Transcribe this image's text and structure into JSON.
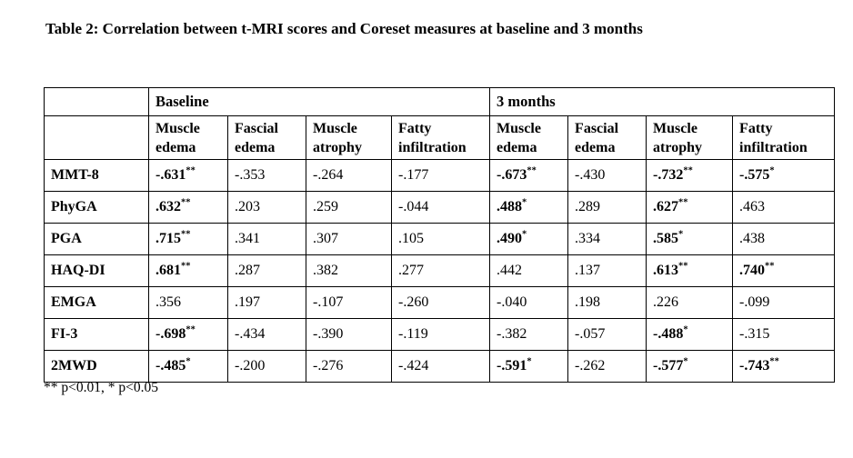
{
  "title": "Table 2: Correlation between t-MRI scores and Coreset measures at baseline and 3 months",
  "footnote": "** p<0.01, * p<0.05",
  "table": {
    "group_headers": [
      {
        "label": "Baseline",
        "span": 4
      },
      {
        "label": "3 months",
        "span": 4
      }
    ],
    "sub_headers": [
      "Muscle edema",
      "Fascial edema",
      "Muscle atrophy",
      "Fatty infiltration",
      "Muscle edema",
      "Fascial edema",
      "Muscle atrophy",
      "Fatty infiltration"
    ],
    "rows": [
      {
        "label": "MMT-8",
        "cells": [
          {
            "v": "-.631",
            "sup": "**",
            "bold": true
          },
          {
            "v": "-.353",
            "sup": "",
            "bold": false
          },
          {
            "v": "-.264",
            "sup": "",
            "bold": false
          },
          {
            "v": "-.177",
            "sup": "",
            "bold": false
          },
          {
            "v": "-.673",
            "sup": "**",
            "bold": true
          },
          {
            "v": "-.430",
            "sup": "",
            "bold": false
          },
          {
            "v": "-.732",
            "sup": "**",
            "bold": true
          },
          {
            "v": "-.575",
            "sup": "*",
            "bold": true
          }
        ]
      },
      {
        "label": "PhyGA",
        "cells": [
          {
            "v": ".632",
            "sup": "**",
            "bold": true
          },
          {
            "v": ".203",
            "sup": "",
            "bold": false
          },
          {
            "v": ".259",
            "sup": "",
            "bold": false
          },
          {
            "v": "-.044",
            "sup": "",
            "bold": false
          },
          {
            "v": ".488",
            "sup": "*",
            "bold": true
          },
          {
            "v": ".289",
            "sup": "",
            "bold": false
          },
          {
            "v": ".627",
            "sup": "**",
            "bold": true
          },
          {
            "v": ".463",
            "sup": "",
            "bold": false
          }
        ]
      },
      {
        "label": "PGA",
        "cells": [
          {
            "v": ".715",
            "sup": "**",
            "bold": true
          },
          {
            "v": ".341",
            "sup": "",
            "bold": false
          },
          {
            "v": ".307",
            "sup": "",
            "bold": false
          },
          {
            "v": ".105",
            "sup": "",
            "bold": false
          },
          {
            "v": ".490",
            "sup": "*",
            "bold": true
          },
          {
            "v": ".334",
            "sup": "",
            "bold": false
          },
          {
            "v": ".585",
            "sup": "*",
            "bold": true
          },
          {
            "v": ".438",
            "sup": "",
            "bold": false
          }
        ]
      },
      {
        "label": "HAQ-DI",
        "cells": [
          {
            "v": ".681",
            "sup": "**",
            "bold": true
          },
          {
            "v": ".287",
            "sup": "",
            "bold": false
          },
          {
            "v": ".382",
            "sup": "",
            "bold": false
          },
          {
            "v": ".277",
            "sup": "",
            "bold": false
          },
          {
            "v": ".442",
            "sup": "",
            "bold": false
          },
          {
            "v": ".137",
            "sup": "",
            "bold": false
          },
          {
            "v": ".613",
            "sup": "**",
            "bold": true
          },
          {
            "v": ".740",
            "sup": "**",
            "bold": true
          }
        ]
      },
      {
        "label": "EMGA",
        "cells": [
          {
            "v": ".356",
            "sup": "",
            "bold": false
          },
          {
            "v": ".197",
            "sup": "",
            "bold": false
          },
          {
            "v": "-.107",
            "sup": "",
            "bold": false
          },
          {
            "v": "-.260",
            "sup": "",
            "bold": false
          },
          {
            "v": "-.040",
            "sup": "",
            "bold": false
          },
          {
            "v": ".198",
            "sup": "",
            "bold": false
          },
          {
            "v": ".226",
            "sup": "",
            "bold": false
          },
          {
            "v": "-.099",
            "sup": "",
            "bold": false
          }
        ]
      },
      {
        "label": "FI-3",
        "cells": [
          {
            "v": "-.698",
            "sup": "**",
            "bold": true
          },
          {
            "v": "-.434",
            "sup": "",
            "bold": false
          },
          {
            "v": "-.390",
            "sup": "",
            "bold": false
          },
          {
            "v": "-.119",
            "sup": "",
            "bold": false
          },
          {
            "v": "-.382",
            "sup": "",
            "bold": false
          },
          {
            "v": "-.057",
            "sup": "",
            "bold": false
          },
          {
            "v": "-.488",
            "sup": "*",
            "bold": true
          },
          {
            "v": "-.315",
            "sup": "",
            "bold": false
          }
        ]
      },
      {
        "label": "2MWD",
        "cells": [
          {
            "v": "-.485",
            "sup": "*",
            "bold": true
          },
          {
            "v": "-.200",
            "sup": "",
            "bold": false
          },
          {
            "v": "-.276",
            "sup": "",
            "bold": false
          },
          {
            "v": "-.424",
            "sup": "",
            "bold": false
          },
          {
            "v": "-.591",
            "sup": "*",
            "bold": true
          },
          {
            "v": "-.262",
            "sup": "",
            "bold": false
          },
          {
            "v": "-.577",
            "sup": "*",
            "bold": true
          },
          {
            "v": "-.743",
            "sup": "**",
            "bold": true
          }
        ]
      }
    ]
  }
}
